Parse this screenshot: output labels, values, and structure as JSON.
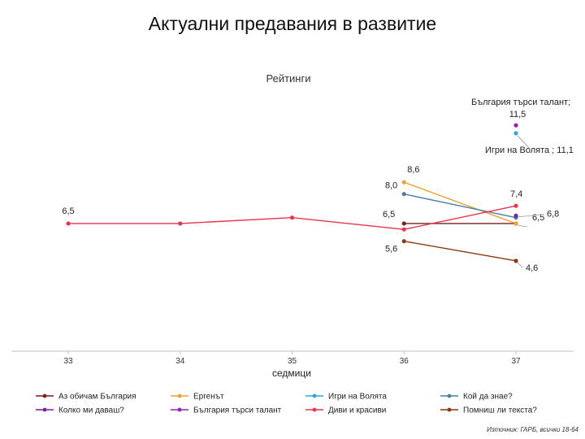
{
  "page": {
    "title": "Актуални предавания в развитие",
    "source": "Източник: ГАРБ, всички 18-64"
  },
  "chart_data": {
    "type": "line",
    "title": "Рейтинги",
    "xlabel": "седмици",
    "ylabel": "",
    "x": [
      33,
      34,
      35,
      36,
      37
    ],
    "ylim": [
      0,
      12.5
    ],
    "grid": false,
    "legend_position": "bottom",
    "series": [
      {
        "name": "Аз обичам България",
        "color": "#7b1f1f",
        "values": [
          null,
          null,
          null,
          6.5,
          6.5
        ],
        "labels": [
          null,
          null,
          null,
          "6,5",
          null
        ]
      },
      {
        "name": "Ергенът",
        "color": "#f0a030",
        "values": [
          null,
          null,
          null,
          8.6,
          6.5
        ],
        "labels": [
          null,
          null,
          null,
          "8,6",
          "6,5"
        ]
      },
      {
        "name": "Игри на Волята",
        "color": "#2aa9d6",
        "values": [
          null,
          null,
          null,
          null,
          11.1
        ],
        "labels": [
          null,
          null,
          null,
          null,
          "Игри на Волята ; 11,1"
        ]
      },
      {
        "name": "Кой да знае?",
        "color": "#4a7fa8",
        "values": [
          null,
          null,
          null,
          8.0,
          6.8
        ],
        "labels": [
          null,
          null,
          null,
          "8,0",
          "6,8"
        ]
      },
      {
        "name": "Колко ми даваш?",
        "color": "#7a1fa0",
        "values": [
          null,
          null,
          null,
          null,
          6.9
        ],
        "labels": [
          null,
          null,
          null,
          null,
          null
        ]
      },
      {
        "name": "България търси талант",
        "color": "#9b1fb0",
        "values": [
          null,
          null,
          null,
          null,
          11.5
        ],
        "labels": [
          null,
          null,
          null,
          null,
          "България търси талант; 11,5"
        ]
      },
      {
        "name": "Диви и красиви",
        "color": "#e8344e",
        "values": [
          6.5,
          6.5,
          6.8,
          6.2,
          7.4
        ],
        "labels": [
          "6,5",
          null,
          null,
          null,
          "7,4"
        ]
      },
      {
        "name": "Помниш ли текста?",
        "color": "#8b3a0e",
        "values": [
          null,
          null,
          null,
          5.6,
          4.6
        ],
        "labels": [
          null,
          null,
          null,
          "5,6",
          "4,6"
        ]
      }
    ]
  }
}
